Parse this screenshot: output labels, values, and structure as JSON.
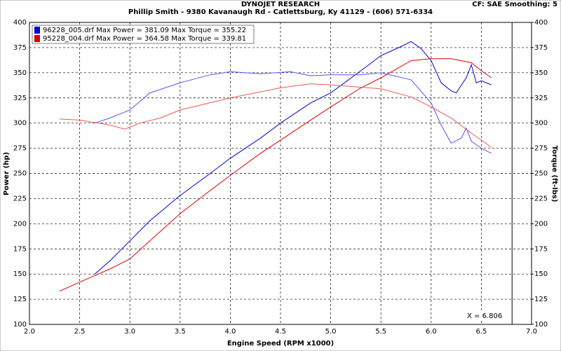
{
  "chart_data": {
    "type": "line",
    "title": "DYNOJET RESEARCH",
    "subtitle": "Phillip Smith - 9380 Kavanaugh Rd - Catlettsburg, Ky 41129 - (606) 571-6334",
    "settings_label": "CF: SAE  Smoothing: 5",
    "x_label": "Engine Speed (RPM x1000)",
    "y_label": "Power (hp)",
    "y2_label": "Torque (ft-lbs)",
    "xlim": [
      2.0,
      7.0
    ],
    "xticks": [
      {
        "value": 2,
        "label": "2.0"
      },
      2.5,
      {
        "value": 3,
        "label": "3.0"
      },
      3.5,
      {
        "value": 4,
        "label": "4.0"
      },
      4.5,
      {
        "value": 5,
        "label": "5.0"
      },
      5.5,
      {
        "value": 6,
        "label": "6.0"
      },
      6.5,
      {
        "value": 7,
        "label": "7.0"
      }
    ],
    "ylim": [
      100,
      400
    ],
    "yticks": [
      100,
      125,
      150,
      175,
      200,
      225,
      250,
      275,
      300,
      325,
      350,
      375,
      400
    ],
    "y2lim": [
      100,
      400
    ],
    "y2ticks": [
      100,
      125,
      150,
      175,
      200,
      225,
      250,
      275,
      300,
      325,
      350,
      375,
      400
    ],
    "grid": true,
    "legend": [
      {
        "text": "96228_005.drf Max Power = 381.09 Max Torque = 355.22",
        "color": "#0000cc"
      },
      {
        "text": "95228_004.drf Max Power = 364.58 Max Torque = 339.81",
        "color": "#dd0000"
      }
    ],
    "cursor": {
      "value": 6.806,
      "label": "X = 6.806"
    },
    "series": [
      {
        "color": "#0000cc",
        "x": [
          2.65,
          2.8,
          3.0,
          3.2,
          3.5,
          3.8,
          4.0,
          4.3,
          4.5,
          4.8,
          5.0,
          5.3,
          5.5,
          5.7,
          5.8,
          5.9,
          6.0,
          6.1,
          6.2,
          6.25,
          6.35,
          6.4,
          6.45,
          6.5,
          6.6
        ],
        "values": [
          150,
          163,
          183,
          203,
          228,
          250,
          265,
          285,
          300,
          320,
          330,
          352,
          367,
          376,
          381,
          374,
          362,
          340,
          332,
          330,
          345,
          358,
          340,
          342,
          338
        ]
      },
      {
        "color": "#dd0000",
        "x": [
          2.3,
          2.5,
          2.8,
          3.0,
          3.3,
          3.5,
          3.8,
          4.0,
          4.3,
          4.5,
          4.8,
          5.0,
          5.3,
          5.5,
          5.8,
          6.0,
          6.2,
          6.4,
          6.5,
          6.6
        ],
        "values": [
          133,
          142,
          155,
          165,
          192,
          210,
          233,
          248,
          270,
          283,
          303,
          316,
          335,
          345,
          362,
          364,
          364,
          360,
          352,
          345
        ]
      },
      {
        "color": "#5555ee",
        "axis": "y2",
        "x": [
          2.65,
          2.8,
          3.0,
          3.2,
          3.5,
          3.8,
          4.0,
          4.3,
          4.6,
          4.8,
          5.0,
          5.3,
          5.5,
          5.8,
          6.0,
          6.1,
          6.2,
          6.3,
          6.35,
          6.4,
          6.5,
          6.6
        ],
        "values": [
          300,
          305,
          313,
          330,
          340,
          348,
          351,
          349,
          351,
          347,
          348,
          348,
          350,
          343,
          320,
          298,
          280,
          285,
          295,
          282,
          275,
          270
        ]
      },
      {
        "color": "#ee5555",
        "axis": "y2",
        "x": [
          2.3,
          2.5,
          2.8,
          2.95,
          3.1,
          3.3,
          3.5,
          4.0,
          4.5,
          4.8,
          5.0,
          5.5,
          5.8,
          6.0,
          6.2,
          6.4,
          6.6
        ],
        "values": [
          304,
          303,
          298,
          294,
          300,
          305,
          313,
          325,
          335,
          339,
          338,
          334,
          326,
          316,
          305,
          290,
          276
        ]
      }
    ]
  }
}
